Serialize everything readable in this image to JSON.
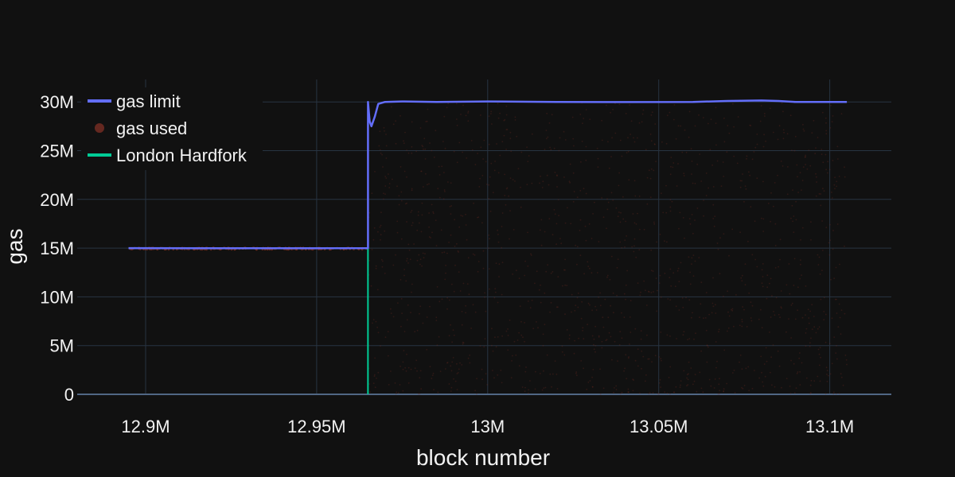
{
  "chart_data": {
    "type": "line",
    "title": "",
    "xlabel": "block number",
    "ylabel": "gas",
    "xlim": [
      12880000,
      13118000
    ],
    "ylim": [
      0,
      32300000
    ],
    "x_ticks": [
      12900000,
      12950000,
      13000000,
      13050000,
      13100000
    ],
    "x_tick_labels": [
      "12.9M",
      "12.95M",
      "13M",
      "13.05M",
      "13.1M"
    ],
    "y_ticks": [
      0,
      5000000,
      10000000,
      15000000,
      20000000,
      25000000,
      30000000
    ],
    "y_tick_labels": [
      "0",
      "5M",
      "10M",
      "15M",
      "20M",
      "25M",
      "30M"
    ],
    "grid": true,
    "legend_position": "top-left",
    "series": [
      {
        "name": "gas limit",
        "kind": "line",
        "color": "#636efa",
        "x": [
          12895000,
          12920000,
          12945000,
          12965000,
          12965000,
          12965500,
          12966000,
          12967000,
          12968000,
          12970000,
          12975000,
          12985000,
          13000000,
          13020000,
          13040000,
          13060000,
          13070000,
          13080000,
          13085000,
          13090000,
          13105000
        ],
        "y": [
          15000000,
          14980000,
          14990000,
          15000000,
          30000000,
          28000000,
          27500000,
          28500000,
          29800000,
          30000000,
          30050000,
          30000000,
          30050000,
          30000000,
          29980000,
          30000000,
          30100000,
          30150000,
          30100000,
          30000000,
          30000000
        ]
      },
      {
        "name": "gas used",
        "kind": "scatter",
        "color": "#7a2e24",
        "pre_fork": {
          "x_range": [
            12895000,
            12965000
          ],
          "y_range": [
            14850000,
            15050000
          ]
        },
        "post_fork": {
          "x_range": [
            12965000,
            13105000
          ],
          "y_range": [
            0,
            30000000
          ]
        }
      },
      {
        "name": "London Hardfork",
        "kind": "vline",
        "color": "#00cc96",
        "x": 12965000,
        "y_range": [
          0,
          15000000
        ]
      }
    ]
  }
}
